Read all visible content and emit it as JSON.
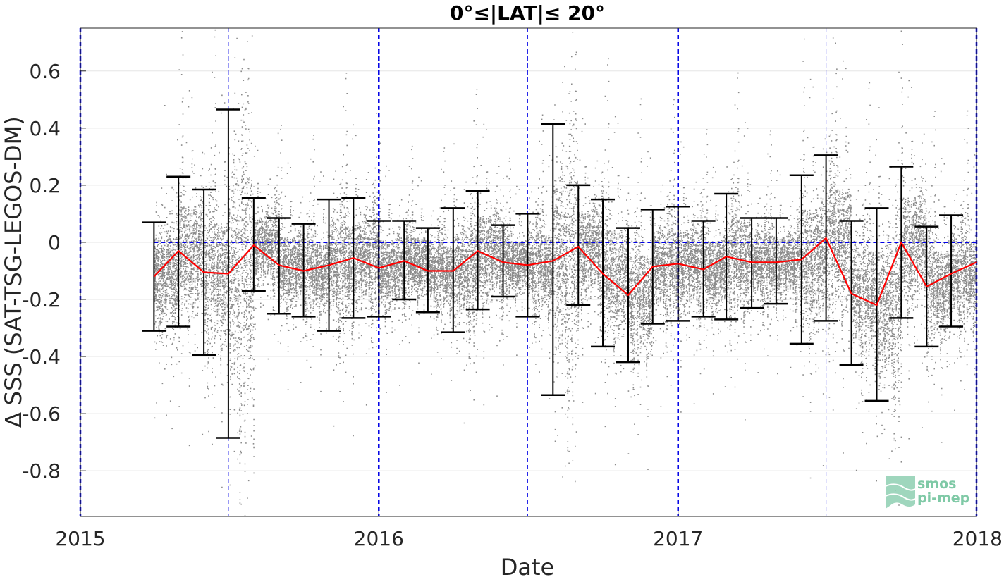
{
  "chart_data": {
    "type": "scatter",
    "title": "0°≤|LAT|≤ 20°",
    "xlabel": "Date",
    "ylabel": "∆ SSS (SAT-TSG-LEGOS-DM)",
    "xlim": [
      "2015-01-01",
      "2018-01-01"
    ],
    "ylim": [
      -0.96,
      0.75
    ],
    "x_ticks": [
      "2015",
      "2016",
      "2017",
      "2018"
    ],
    "y_ticks": [
      0.6,
      0.4,
      0.2,
      0,
      -0.2,
      -0.4,
      -0.6,
      -0.8
    ],
    "y_tick_labels": [
      "0.6",
      "0.4",
      "0.2",
      "0",
      "-0.2",
      "-0.4",
      "-0.6",
      "-0.8"
    ],
    "grid": true,
    "reference_lines": {
      "zero_line": 0,
      "year_boundaries": [
        "2015-01-01",
        "2016-01-01",
        "2017-01-01",
        "2018-01-01"
      ],
      "mid_year_lines": [
        "2015-07-01",
        "2016-07-01",
        "2017-07-01"
      ]
    },
    "series": [
      {
        "style": "red line",
        "x": [
          "2015-04-01",
          "2015-05-01",
          "2015-06-01",
          "2015-07-01",
          "2015-08-01",
          "2015-09-01",
          "2015-10-01",
          "2015-11-01",
          "2015-12-01",
          "2016-01-01",
          "2016-02-01",
          "2016-03-01",
          "2016-04-01",
          "2016-05-01",
          "2016-06-01",
          "2016-07-01",
          "2016-08-01",
          "2016-09-01",
          "2016-10-01",
          "2016-11-01",
          "2016-12-01",
          "2017-01-01",
          "2017-02-01",
          "2017-03-01",
          "2017-04-01",
          "2017-05-01",
          "2017-06-01",
          "2017-07-01",
          "2017-08-01",
          "2017-09-01",
          "2017-10-01",
          "2017-11-01",
          "2017-12-01",
          "2018-01-01"
        ],
        "mean": [
          -0.12,
          -0.03,
          -0.105,
          -0.11,
          -0.01,
          -0.08,
          -0.1,
          -0.08,
          -0.055,
          -0.09,
          -0.065,
          -0.1,
          -0.1,
          -0.03,
          -0.07,
          -0.08,
          -0.065,
          -0.015,
          -0.11,
          -0.185,
          -0.085,
          -0.075,
          -0.095,
          -0.05,
          -0.07,
          -0.07,
          -0.06,
          0.015,
          -0.18,
          -0.22,
          0.0,
          -0.155,
          -0.11,
          -0.07
        ],
        "err_low": [
          -0.31,
          -0.295,
          -0.395,
          -0.685,
          -0.17,
          -0.25,
          -0.26,
          -0.31,
          -0.265,
          -0.26,
          -0.2,
          -0.245,
          -0.315,
          -0.235,
          -0.19,
          -0.26,
          -0.535,
          -0.22,
          -0.365,
          -0.42,
          -0.285,
          -0.275,
          -0.26,
          -0.27,
          -0.23,
          -0.215,
          -0.355,
          -0.275,
          -0.43,
          -0.555,
          -0.265,
          -0.365,
          -0.295,
          null
        ],
        "err_high": [
          0.07,
          0.23,
          0.185,
          0.465,
          0.155,
          0.085,
          0.065,
          0.15,
          0.155,
          0.075,
          0.075,
          0.05,
          0.12,
          0.18,
          0.06,
          0.1,
          0.415,
          0.2,
          0.15,
          0.05,
          0.115,
          0.125,
          0.075,
          0.17,
          0.085,
          0.085,
          0.235,
          0.305,
          0.075,
          0.12,
          0.265,
          0.055,
          0.095,
          null
        ]
      }
    ],
    "scatter_style": "grey points (individual SAT-TSG differences)",
    "colors": {
      "scatter": "#808080",
      "mean_line": "#ff0000",
      "error_bars": "#000000",
      "reference_lines": "#0000e6",
      "grid": "#e5e5e5"
    }
  },
  "logo": {
    "line1": "smos",
    "line2": "pi-mep",
    "icon": "waves-logo-icon",
    "color": "#7fc9a6"
  }
}
